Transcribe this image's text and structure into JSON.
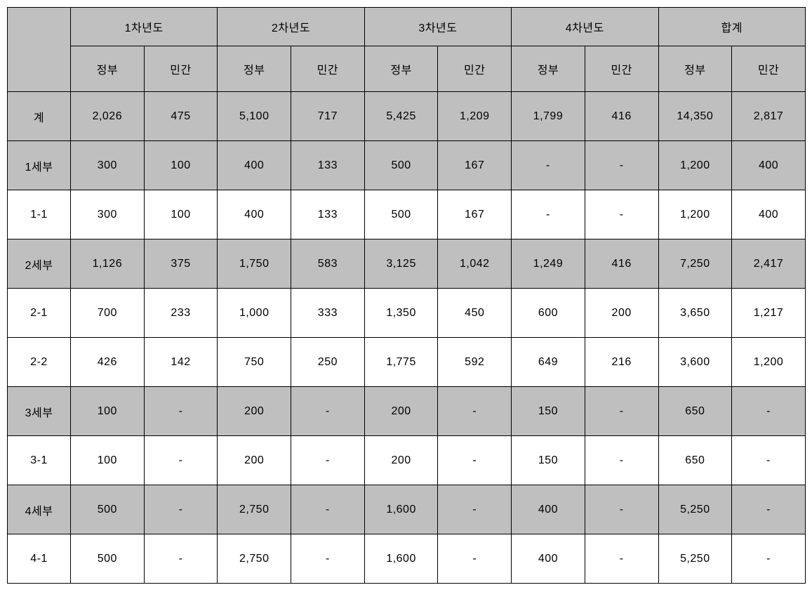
{
  "table": {
    "background_color": "#ffffff",
    "header_bg": "#c0c0c0",
    "shaded_bg": "#bfbfbf",
    "border_color": "#000000",
    "font_size": 16,
    "year_headers": [
      "1차년도",
      "2차년도",
      "3차년도",
      "4차년도",
      "합계"
    ],
    "sub_headers": [
      "정부",
      "민간"
    ],
    "rows": [
      {
        "label": "계",
        "shaded": true,
        "cells": [
          "2,026",
          "475",
          "5,100",
          "717",
          "5,425",
          "1,209",
          "1,799",
          "416",
          "14,350",
          "2,817"
        ]
      },
      {
        "label": "1세부",
        "shaded": true,
        "cells": [
          "300",
          "100",
          "400",
          "133",
          "500",
          "167",
          "-",
          "-",
          "1,200",
          "400"
        ]
      },
      {
        "label": "1-1",
        "shaded": false,
        "cells": [
          "300",
          "100",
          "400",
          "133",
          "500",
          "167",
          "-",
          "-",
          "1,200",
          "400"
        ]
      },
      {
        "label": "2세부",
        "shaded": true,
        "cells": [
          "1,126",
          "375",
          "1,750",
          "583",
          "3,125",
          "1,042",
          "1,249",
          "416",
          "7,250",
          "2,417"
        ]
      },
      {
        "label": "2-1",
        "shaded": false,
        "cells": [
          "700",
          "233",
          "1,000",
          "333",
          "1,350",
          "450",
          "600",
          "200",
          "3,650",
          "1,217"
        ]
      },
      {
        "label": "2-2",
        "shaded": false,
        "cells": [
          "426",
          "142",
          "750",
          "250",
          "1,775",
          "592",
          "649",
          "216",
          "3,600",
          "1,200"
        ]
      },
      {
        "label": "3세부",
        "shaded": true,
        "cells": [
          "100",
          "-",
          "200",
          "-",
          "200",
          "-",
          "150",
          "-",
          "650",
          "-"
        ]
      },
      {
        "label": "3-1",
        "shaded": false,
        "cells": [
          "100",
          "-",
          "200",
          "-",
          "200",
          "-",
          "150",
          "-",
          "650",
          "-"
        ]
      },
      {
        "label": "4세부",
        "shaded": true,
        "cells": [
          "500",
          "-",
          "2,750",
          "-",
          "1,600",
          "-",
          "400",
          "-",
          "5,250",
          "-"
        ]
      },
      {
        "label": "4-1",
        "shaded": false,
        "cells": [
          "500",
          "-",
          "2,750",
          "-",
          "1,600",
          "-",
          "400",
          "-",
          "5,250",
          "-"
        ]
      }
    ]
  }
}
